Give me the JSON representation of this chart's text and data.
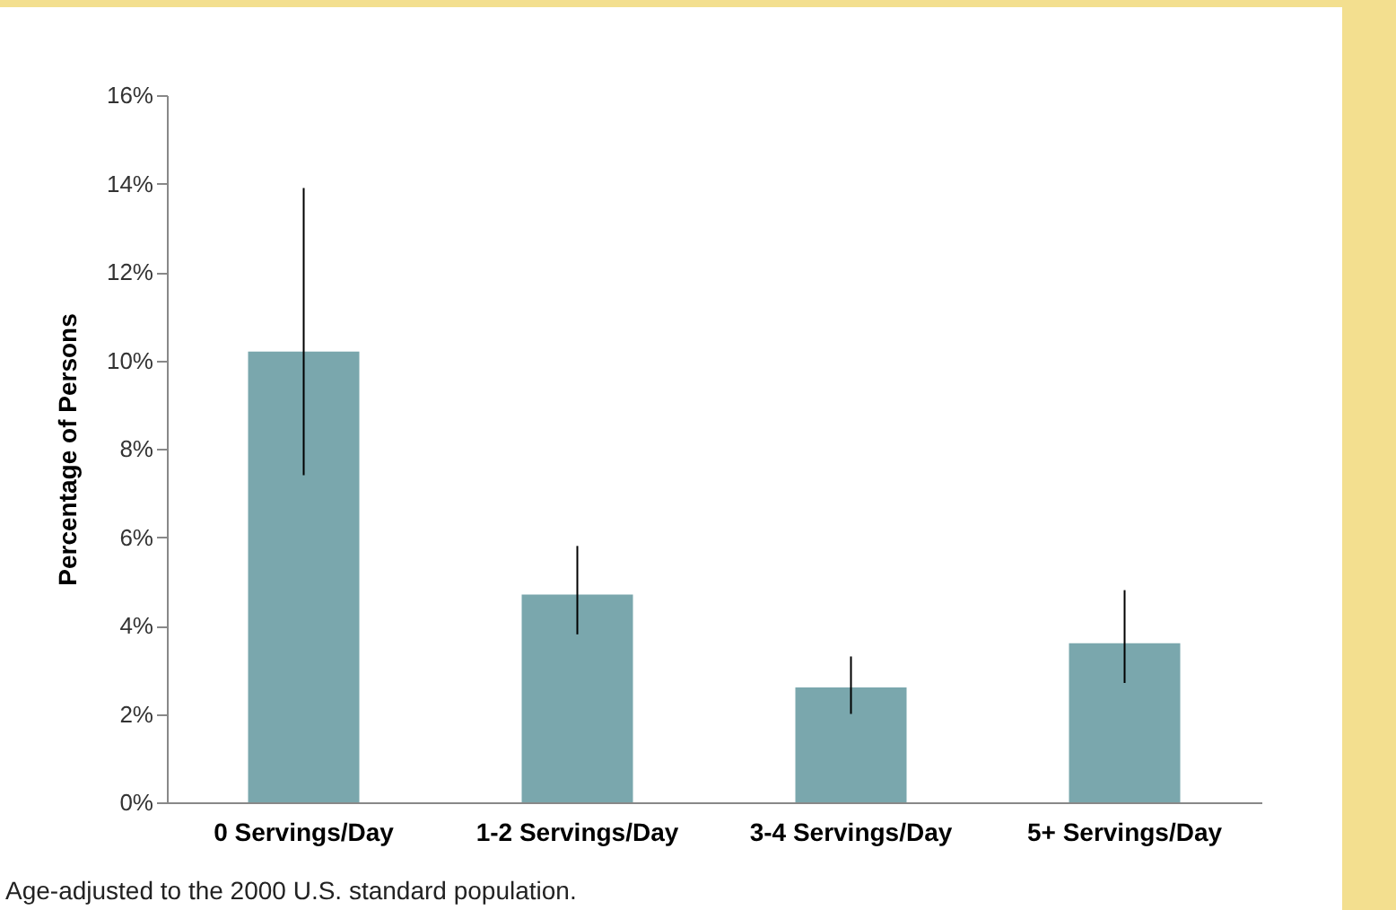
{
  "chart_data": {
    "type": "bar",
    "ylabel": "Percentage of Persons",
    "categories": [
      "0 Servings/Day",
      "1-2 Servings/Day",
      "3-4 Servings/Day",
      "5+ Servings/Day"
    ],
    "values": [
      10.2,
      4.7,
      2.6,
      3.6
    ],
    "errors": [
      [
        7.4,
        13.9
      ],
      [
        3.8,
        5.8
      ],
      [
        2.0,
        3.3
      ],
      [
        2.7,
        4.8
      ]
    ],
    "color": "#7aa7ad",
    "ylim": [
      0,
      16
    ],
    "yticks": [
      {
        "value": 0,
        "label": "0%"
      },
      {
        "value": 2,
        "label": "2%"
      },
      {
        "value": 4,
        "label": "4%"
      },
      {
        "value": 6,
        "label": "6%"
      },
      {
        "value": 8,
        "label": "8%"
      },
      {
        "value": 10,
        "label": "10%"
      },
      {
        "value": 12,
        "label": "12%"
      },
      {
        "value": 14,
        "label": "14%"
      },
      {
        "value": 16,
        "label": "16%"
      }
    ],
    "grid": false,
    "annotations": [
      "Age-adjusted to the 2000 U.S. standard population."
    ]
  }
}
